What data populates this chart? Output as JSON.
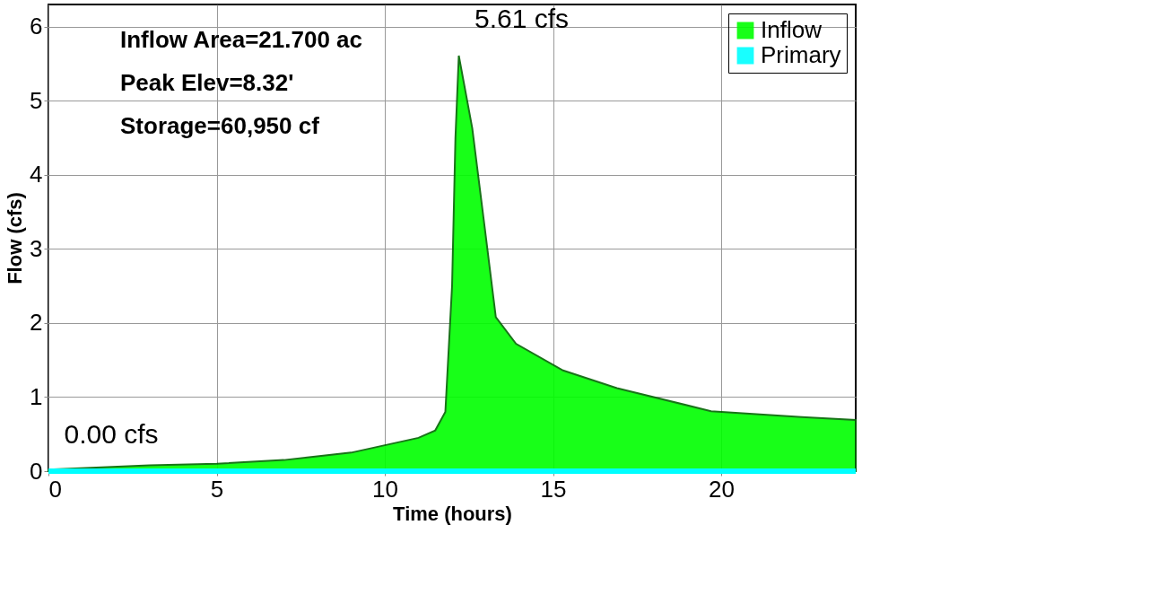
{
  "chart_data": {
    "type": "area",
    "xlabel": "Time  (hours)",
    "ylabel": "Flow  (cfs)",
    "xlim": [
      0,
      24
    ],
    "ylim": [
      0,
      6.3
    ],
    "xticks": [
      0,
      5,
      10,
      15,
      20
    ],
    "yticks": [
      0,
      1,
      2,
      3,
      4,
      5,
      6
    ],
    "grid": true,
    "legend": "top right",
    "series": [
      {
        "name": "Inflow",
        "color": "#00ff00",
        "x": [
          0,
          3,
          5,
          7,
          9,
          10,
          11,
          11.5,
          11.8,
          12.0,
          12.1,
          12.2,
          12.6,
          13.0,
          13.3,
          13.9,
          15.3,
          16.9,
          19.7,
          22.4,
          24
        ],
        "values": [
          0.02,
          0.08,
          0.1,
          0.15,
          0.25,
          0.35,
          0.45,
          0.55,
          0.8,
          2.5,
          4.5,
          5.61,
          4.63,
          3.18,
          2.08,
          1.72,
          1.36,
          1.12,
          0.81,
          0.73,
          0.69
        ]
      },
      {
        "name": "Primary",
        "type": "line",
        "color": "#00ffff",
        "x": [
          0,
          24
        ],
        "values": [
          0,
          0
        ]
      }
    ],
    "annotations": [
      {
        "text": "5.61 cfs",
        "x": 12.2,
        "y": 5.61
      },
      {
        "text": "0.00 cfs",
        "x": 0,
        "y": 0
      },
      "Inflow Area=21.700 ac",
      "Peak Elev=8.32'",
      "Storage=60,950 cf"
    ]
  }
}
